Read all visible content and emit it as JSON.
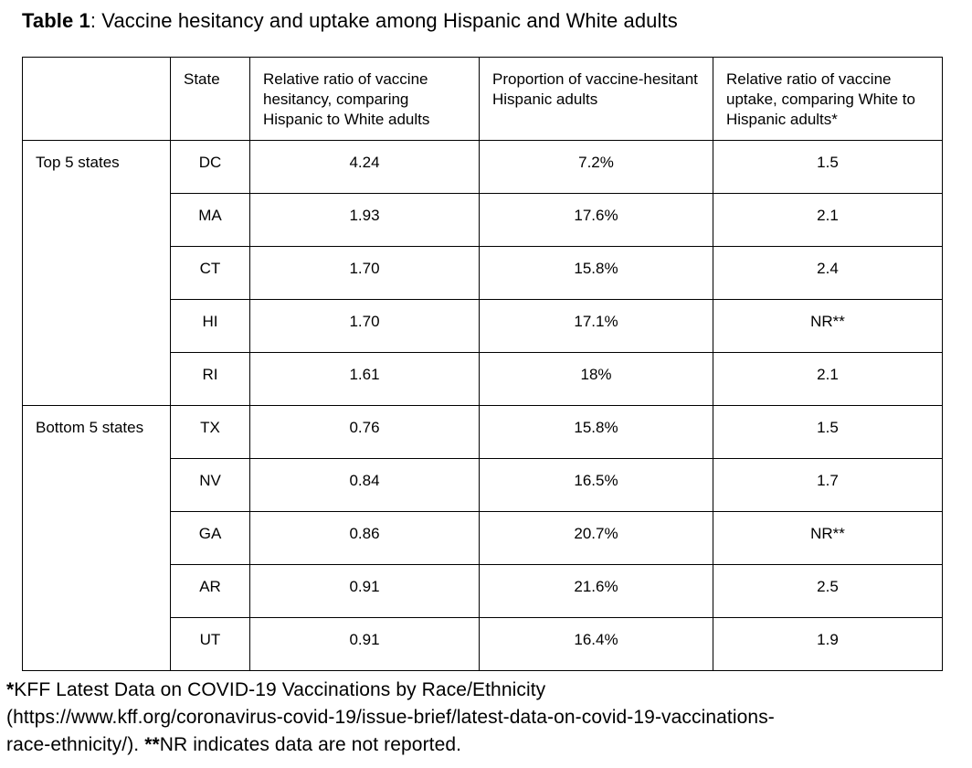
{
  "colors": {
    "background": "#ffffff",
    "text": "#000000",
    "table_border": "#000000"
  },
  "title": {
    "prefix": "Table 1",
    "rest": ": Vaccine hesitancy and uptake among Hispanic and White adults"
  },
  "table": {
    "columns": [
      "",
      "State",
      "Relative ratio of vaccine hesitancy, comparing Hispanic to White adults",
      "Proportion of vaccine-hesitant Hispanic adults",
      "Relative ratio of vaccine uptake, comparing White to Hispanic adults*"
    ],
    "groups": [
      {
        "label": "Top 5 states",
        "rows": [
          {
            "state": "DC",
            "hesitancy_ratio": "4.24",
            "hesitant_proportion": "7.2%",
            "uptake_ratio": "1.5"
          },
          {
            "state": "MA",
            "hesitancy_ratio": "1.93",
            "hesitant_proportion": "17.6%",
            "uptake_ratio": "2.1"
          },
          {
            "state": "CT",
            "hesitancy_ratio": "1.70",
            "hesitant_proportion": "15.8%",
            "uptake_ratio": "2.4"
          },
          {
            "state": "HI",
            "hesitancy_ratio": "1.70",
            "hesitant_proportion": "17.1%",
            "uptake_ratio": "NR**"
          },
          {
            "state": "RI",
            "hesitancy_ratio": "1.61",
            "hesitant_proportion": "18%",
            "uptake_ratio": "2.1"
          }
        ]
      },
      {
        "label": "Bottom 5 states",
        "rows": [
          {
            "state": "TX",
            "hesitancy_ratio": "0.76",
            "hesitant_proportion": "15.8%",
            "uptake_ratio": "1.5"
          },
          {
            "state": "NV",
            "hesitancy_ratio": "0.84",
            "hesitant_proportion": "16.5%",
            "uptake_ratio": "1.7"
          },
          {
            "state": "GA",
            "hesitancy_ratio": "0.86",
            "hesitant_proportion": "20.7%",
            "uptake_ratio": "NR**"
          },
          {
            "state": "AR",
            "hesitancy_ratio": "0.91",
            "hesitant_proportion": "21.6%",
            "uptake_ratio": "2.5"
          },
          {
            "state": "UT",
            "hesitancy_ratio": "0.91",
            "hesitant_proportion": "16.4%",
            "uptake_ratio": "1.9"
          }
        ]
      }
    ]
  },
  "footnote": {
    "lines": [
      [
        {
          "text": "*",
          "bold": true
        },
        {
          "text": "KFF Latest Data on COVID-19 Vaccinations by Race/Ethnicity",
          "bold": false
        }
      ],
      [
        {
          "text": "(https://www.kff.org/coronavirus-covid-19/issue-brief/latest-data-on-covid-19-vaccinations-",
          "bold": false
        }
      ],
      [
        {
          "text": "race-ethnicity/). ",
          "bold": false
        },
        {
          "text": "**",
          "bold": true
        },
        {
          "text": "NR indicates data are not reported.",
          "bold": false
        }
      ]
    ]
  }
}
